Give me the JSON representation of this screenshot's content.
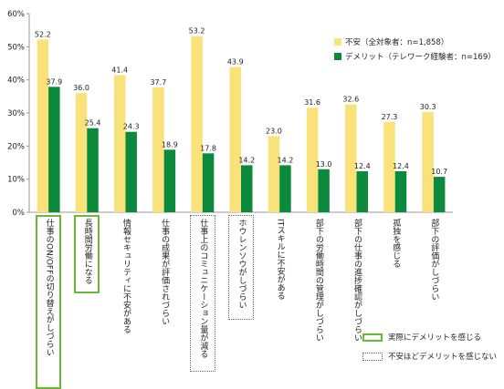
{
  "chart_data": {
    "type": "bar",
    "categories": [
      "仕事のON/OFFの切り替えがしづらい",
      "長時間労働になる",
      "情報セキュリティに不安がある",
      "仕事の成果が評価されづらい",
      "仕事上のコミュニケーション量が減る",
      "ホウレンソウがしづらい",
      "ITスキルに不安がある",
      "部下の労働時間の管理がしづらい",
      "部下の仕事の進捗確認がしづらい",
      "孤独を感じる",
      "部下の評価がしづらい"
    ],
    "series": [
      {
        "name": "不安（全対象者：n=1,858）",
        "values": [
          52.2,
          36.0,
          41.4,
          37.7,
          53.2,
          43.9,
          23.0,
          31.6,
          32.6,
          27.3,
          30.3
        ],
        "value_labels": [
          "52.2",
          "36.0",
          "41.4",
          "37.7",
          "53.2",
          "43.9",
          "23.0",
          "31.6",
          "32.6",
          "27.3",
          "30.3"
        ]
      },
      {
        "name": "デメリット（テレワーク経験者：n=169）",
        "values": [
          37.9,
          25.4,
          24.3,
          18.9,
          17.8,
          14.2,
          14.2,
          13.0,
          12.4,
          12.4,
          10.7
        ],
        "value_labels": [
          "37.9",
          "25.4",
          "24.3",
          "18.9",
          "17.8",
          "14.2",
          "14.2",
          "13.0",
          "12.4",
          "12.4",
          "10.7"
        ]
      }
    ],
    "ylim": [
      0,
      60
    ],
    "yticks": [
      "0%",
      "10%",
      "20%",
      "30%",
      "40%",
      "50%",
      "60%"
    ],
    "grid": false,
    "legend": "top-right",
    "highlight_green": [
      0,
      1
    ],
    "highlight_dotted": [
      4,
      5
    ]
  },
  "colors": {
    "anxiety": "#f9e27a",
    "demerit": "#0a8a3a",
    "green_box": "#66bb33",
    "dotted_box": "#666666"
  },
  "bottom_legend": {
    "green_label": "実際にデメリットを感じる",
    "dotted_label": "不安ほどデメリットを感じない"
  }
}
